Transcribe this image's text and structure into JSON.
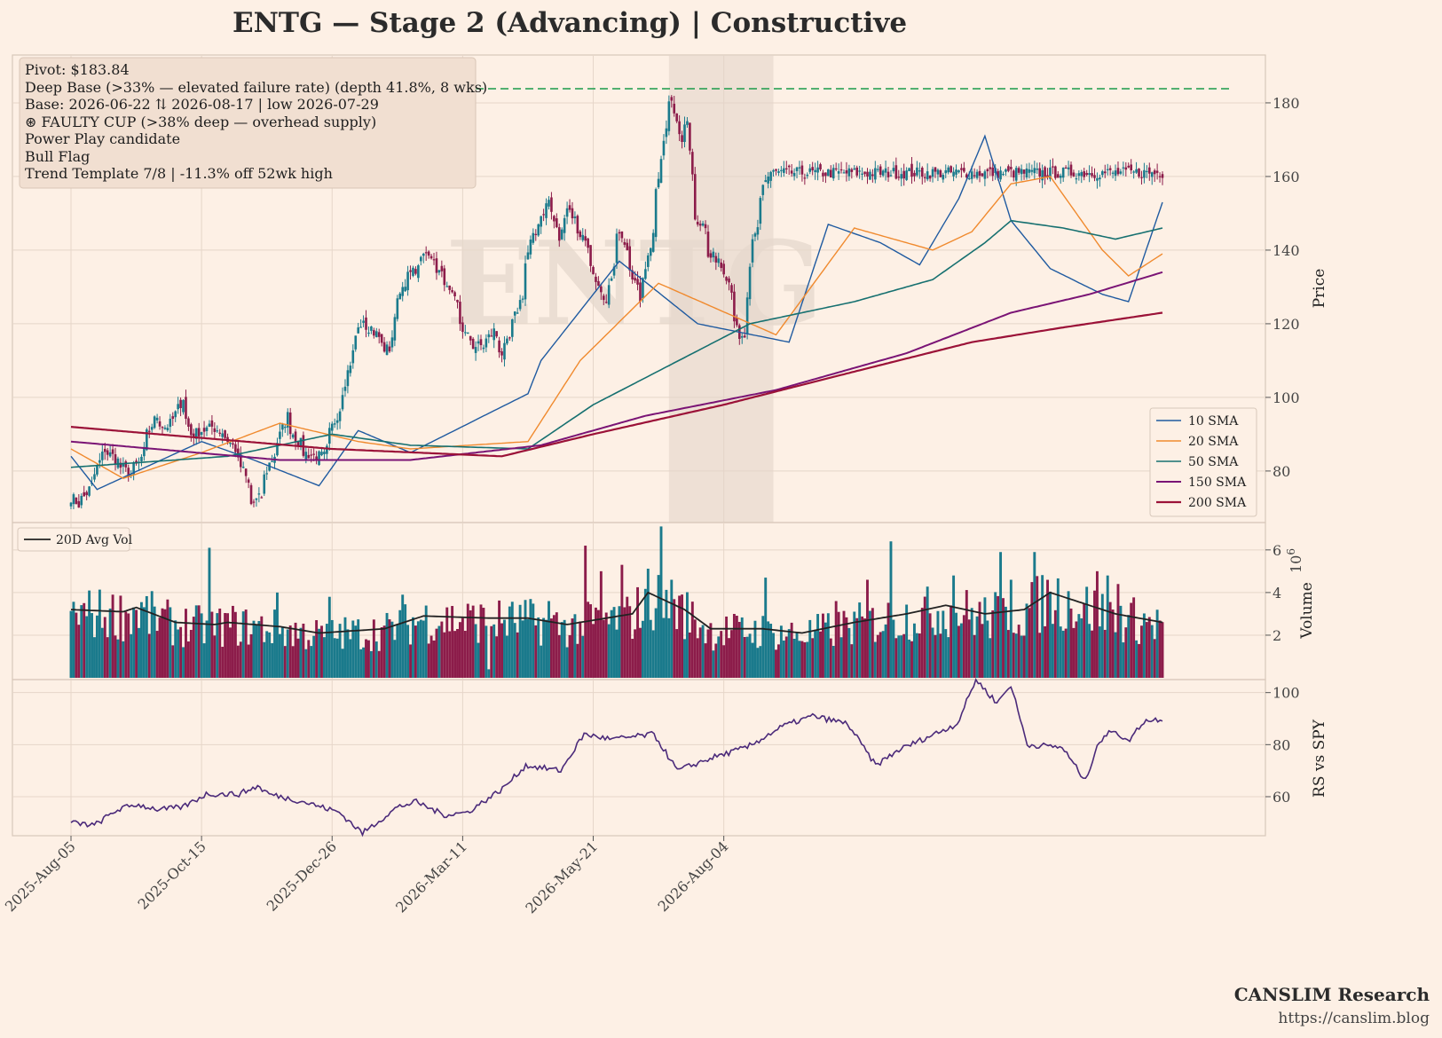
{
  "title": "ENTG  —  Stage 2 (Advancing)  |  Constructive",
  "watermark": "ENTG",
  "info_lines": [
    "Pivot: $183.84",
    "Deep Base (>33% — elevated failure rate)  (depth 41.8%, 8 wks)",
    "Base: 2026-06-22 ⇅ 2026-08-17  |  low 2026-07-29",
    "⊛ FAULTY CUP (>38% deep — overhead supply)",
    "Power Play candidate",
    "Bull Flag",
    "Trend Template 7/8  |  -11.3% off 52wk high"
  ],
  "footer": {
    "brand": "CANSLIM Research",
    "url": "https://canslim.blog"
  },
  "colors": {
    "background": "#fdf0e5",
    "up": "#1a7a8c",
    "down": "#8c1c4a",
    "sma10": "#1f5aa0",
    "sma20": "#f08a2e",
    "sma50": "#167070",
    "sma150": "#7a1475",
    "sma200": "#9b1238",
    "pivot": "#1a9a4a",
    "rs": "#4b2a7a",
    "avgvol": "#222222",
    "base_shade": "#e2d3c8"
  },
  "chart_data": [
    {
      "type": "candlestick",
      "name": "price",
      "ylabel": "Price",
      "ylim": [
        66,
        193
      ],
      "yticks": [
        80,
        100,
        120,
        140,
        160,
        180
      ],
      "x_range": [
        "2025-08-05",
        "2026-08-14"
      ],
      "xticks": [
        "2025-Aug-05",
        "2025-Oct-15",
        "2025-Dec-26",
        "2026-Mar-11",
        "2026-May-21",
        "2026-Aug-04"
      ],
      "grid": true,
      "pivot": 183.84,
      "base_shade": [
        "2026-06-22",
        "2026-08-17"
      ],
      "legend_position": "lower-right",
      "close_anchors": [
        [
          "2025-08-05",
          73
        ],
        [
          "2025-08-08",
          71
        ],
        [
          "2025-08-12",
          73
        ],
        [
          "2025-08-18",
          79
        ],
        [
          "2025-08-22",
          86
        ],
        [
          "2025-08-27",
          84
        ],
        [
          "2025-09-01",
          81
        ],
        [
          "2025-09-05",
          79
        ],
        [
          "2025-09-10",
          82
        ],
        [
          "2025-09-15",
          90
        ],
        [
          "2025-09-19",
          95
        ],
        [
          "2025-09-24",
          92
        ],
        [
          "2025-09-29",
          94
        ],
        [
          "2025-10-03",
          100
        ],
        [
          "2025-10-08",
          90
        ],
        [
          "2025-10-14",
          91
        ],
        [
          "2025-10-20",
          92
        ],
        [
          "2025-10-26",
          90
        ],
        [
          "2025-10-31",
          86
        ],
        [
          "2025-11-05",
          80
        ],
        [
          "2025-11-10",
          71
        ],
        [
          "2025-11-14",
          73
        ],
        [
          "2025-11-19",
          82
        ],
        [
          "2025-11-24",
          88
        ],
        [
          "2025-11-28",
          95
        ],
        [
          "2025-12-03",
          89
        ],
        [
          "2025-12-08",
          85
        ],
        [
          "2025-12-13",
          84
        ],
        [
          "2025-12-18",
          84
        ],
        [
          "2025-12-23",
          92
        ],
        [
          "2025-12-29",
          102
        ],
        [
          "2026-01-02",
          112
        ],
        [
          "2026-01-07",
          120
        ],
        [
          "2026-01-12",
          118
        ],
        [
          "2026-01-16",
          118
        ],
        [
          "2026-01-20",
          112
        ],
        [
          "2026-01-23",
          115
        ],
        [
          "2026-01-28",
          128
        ],
        [
          "2026-02-02",
          135
        ],
        [
          "2026-02-06",
          135
        ],
        [
          "2026-02-12",
          140
        ],
        [
          "2026-02-17",
          135
        ],
        [
          "2026-02-22",
          130
        ],
        [
          "2026-02-27",
          125
        ],
        [
          "2026-03-04",
          117
        ],
        [
          "2026-03-09",
          114
        ],
        [
          "2026-03-14",
          114
        ],
        [
          "2026-03-19",
          118
        ],
        [
          "2026-03-24",
          112
        ],
        [
          "2026-03-29",
          118
        ],
        [
          "2026-04-03",
          128
        ],
        [
          "2026-04-08",
          142
        ],
        [
          "2026-04-13",
          148
        ],
        [
          "2026-04-18",
          155
        ],
        [
          "2026-04-23",
          143
        ],
        [
          "2026-04-28",
          152
        ],
        [
          "2026-05-03",
          146
        ],
        [
          "2026-05-08",
          142
        ],
        [
          "2026-05-13",
          130
        ],
        [
          "2026-05-18",
          125
        ],
        [
          "2026-05-21",
          132
        ],
        [
          "2026-05-26",
          146
        ],
        [
          "2026-05-31",
          138
        ],
        [
          "2026-06-05",
          127
        ],
        [
          "2026-06-10",
          138
        ],
        [
          "2026-06-15",
          155
        ],
        [
          "2026-06-20",
          178
        ],
        [
          "2026-06-23",
          182
        ],
        [
          "2026-06-27",
          166
        ],
        [
          "2026-07-01",
          175
        ],
        [
          "2026-07-05",
          148
        ],
        [
          "2026-07-09",
          148
        ],
        [
          "2026-07-13",
          138
        ],
        [
          "2026-07-17",
          138
        ],
        [
          "2026-07-21",
          135
        ],
        [
          "2026-07-25",
          128
        ],
        [
          "2026-07-29",
          115
        ],
        [
          "2026-08-02",
          118
        ],
        [
          "2026-08-05",
          142
        ],
        [
          "2026-08-08",
          148
        ],
        [
          "2026-08-11",
          158
        ],
        [
          "2026-08-14",
          161
        ]
      ],
      "series": [
        {
          "name": "10 SMA",
          "values": [
            [
              0,
              84
            ],
            [
              10,
              75
            ],
            [
              50,
              88
            ],
            [
              70,
              83
            ],
            [
              95,
              76
            ],
            [
              110,
              91
            ],
            [
              130,
              85
            ],
            [
              175,
              101
            ],
            [
              180,
              110
            ],
            [
              210,
              137
            ],
            [
              240,
              120
            ],
            [
              275,
              115
            ],
            [
              290,
              147
            ],
            [
              310,
              142
            ],
            [
              325,
              136
            ],
            [
              340,
              154
            ],
            [
              350,
              171
            ],
            [
              360,
              148
            ],
            [
              375,
              135
            ],
            [
              395,
              128
            ],
            [
              405,
              126
            ],
            [
              418,
              153
            ]
          ]
        },
        {
          "name": "20 SMA",
          "values": [
            [
              0,
              86
            ],
            [
              20,
              78
            ],
            [
              50,
              85
            ],
            [
              80,
              93
            ],
            [
              110,
              88
            ],
            [
              130,
              86
            ],
            [
              175,
              88
            ],
            [
              195,
              110
            ],
            [
              225,
              131
            ],
            [
              270,
              117
            ],
            [
              300,
              146
            ],
            [
              330,
              140
            ],
            [
              345,
              145
            ],
            [
              360,
              158
            ],
            [
              375,
              160
            ],
            [
              395,
              140
            ],
            [
              405,
              133
            ],
            [
              418,
              139
            ]
          ]
        },
        {
          "name": "50 SMA",
          "values": [
            [
              0,
              81
            ],
            [
              60,
              84
            ],
            [
              100,
              90
            ],
            [
              130,
              87
            ],
            [
              175,
              86
            ],
            [
              200,
              98
            ],
            [
              260,
              120
            ],
            [
              300,
              126
            ],
            [
              330,
              132
            ],
            [
              350,
              142
            ],
            [
              360,
              148
            ],
            [
              380,
              146
            ],
            [
              400,
              143
            ],
            [
              418,
              146
            ]
          ]
        },
        {
          "name": "150 SMA",
          "values": [
            [
              0,
              88
            ],
            [
              80,
              83
            ],
            [
              130,
              83
            ],
            [
              180,
              87
            ],
            [
              220,
              95
            ],
            [
              270,
              102
            ],
            [
              320,
              112
            ],
            [
              360,
              123
            ],
            [
              390,
              128
            ],
            [
              418,
              134
            ]
          ]
        },
        {
          "name": "200 SMA",
          "values": [
            [
              0,
              92
            ],
            [
              100,
              86
            ],
            [
              165,
              84
            ],
            [
              200,
              90
            ],
            [
              250,
              98
            ],
            [
              300,
              107
            ],
            [
              345,
              115
            ],
            [
              380,
              119
            ],
            [
              418,
              123
            ]
          ]
        }
      ]
    },
    {
      "type": "bar",
      "name": "volume",
      "ylabel": "Volume",
      "scale_label": "10^6",
      "ylim": [
        0,
        7.2
      ],
      "yticks": [
        2,
        4,
        6
      ],
      "legend": "20D Avg Vol",
      "spikes": [
        [
          53,
          6.1
        ],
        [
          79,
          4.0
        ],
        [
          99,
          3.8
        ],
        [
          127,
          3.9
        ],
        [
          160,
          5.8
        ],
        [
          183,
          3.6
        ],
        [
          197,
          6.2
        ],
        [
          203,
          5.0
        ],
        [
          211,
          5.3
        ],
        [
          226,
          7.1
        ],
        [
          230,
          4.6
        ],
        [
          266,
          4.7
        ],
        [
          293,
          3.6
        ],
        [
          305,
          4.6
        ],
        [
          314,
          6.4
        ],
        [
          338,
          4.8
        ],
        [
          356,
          5.9
        ],
        [
          360,
          4.6
        ],
        [
          369,
          5.9
        ],
        [
          393,
          5.0
        ],
        [
          397,
          4.8
        ],
        [
          401,
          4.4
        ]
      ],
      "avg_anchors": [
        [
          0,
          3.2
        ],
        [
          20,
          3.1
        ],
        [
          25,
          3.3
        ],
        [
          40,
          2.6
        ],
        [
          55,
          2.5
        ],
        [
          60,
          2.6
        ],
        [
          80,
          2.4
        ],
        [
          95,
          2.1
        ],
        [
          120,
          2.3
        ],
        [
          135,
          2.9
        ],
        [
          160,
          2.8
        ],
        [
          175,
          2.8
        ],
        [
          190,
          2.5
        ],
        [
          215,
          3.0
        ],
        [
          221,
          4.0
        ],
        [
          235,
          3.2
        ],
        [
          245,
          2.3
        ],
        [
          265,
          2.3
        ],
        [
          280,
          2.1
        ],
        [
          300,
          2.6
        ],
        [
          320,
          3.0
        ],
        [
          335,
          3.4
        ],
        [
          350,
          3.0
        ],
        [
          365,
          3.2
        ],
        [
          375,
          4.0
        ],
        [
          390,
          3.4
        ],
        [
          400,
          3.0
        ],
        [
          418,
          2.6
        ]
      ]
    },
    {
      "type": "line",
      "name": "relative strength",
      "ylabel": "RS vs SPY",
      "ylim": [
        45,
        105
      ],
      "yticks": [
        60,
        80,
        100
      ],
      "anchors": [
        [
          0,
          50
        ],
        [
          10,
          49
        ],
        [
          20,
          55
        ],
        [
          28,
          57
        ],
        [
          38,
          55
        ],
        [
          48,
          56
        ],
        [
          58,
          61
        ],
        [
          72,
          61
        ],
        [
          80,
          64
        ],
        [
          85,
          61
        ],
        [
          100,
          58
        ],
        [
          115,
          54
        ],
        [
          125,
          46
        ],
        [
          140,
          56
        ],
        [
          148,
          58
        ],
        [
          160,
          53
        ],
        [
          170,
          54
        ],
        [
          185,
          63
        ],
        [
          195,
          72
        ],
        [
          210,
          70
        ],
        [
          220,
          84
        ],
        [
          232,
          82
        ],
        [
          250,
          84
        ],
        [
          260,
          70
        ],
        [
          275,
          75
        ],
        [
          290,
          79
        ],
        [
          305,
          87
        ],
        [
          318,
          91
        ],
        [
          333,
          88
        ],
        [
          345,
          72
        ],
        [
          355,
          78
        ],
        [
          370,
          84
        ],
        [
          380,
          88
        ],
        [
          388,
          105
        ],
        [
          397,
          96
        ],
        [
          403,
          103
        ],
        [
          410,
          80
        ],
        [
          425,
          79
        ],
        [
          435,
          66
        ],
        [
          440,
          80
        ],
        [
          447,
          86
        ],
        [
          453,
          81
        ],
        [
          460,
          89
        ],
        [
          468,
          90
        ]
      ]
    }
  ],
  "legend_items": [
    "10 SMA",
    "20 SMA",
    "50 SMA",
    "150 SMA",
    "200 SMA"
  ]
}
